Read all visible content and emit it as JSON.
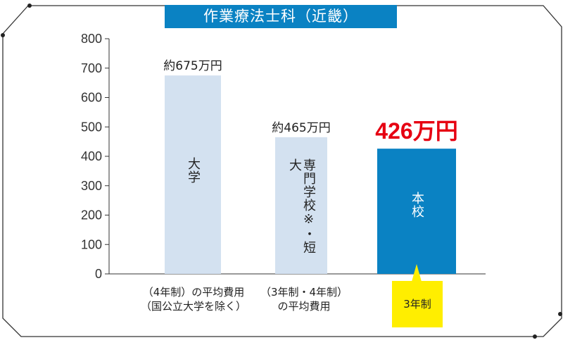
{
  "title": "作業療法士科（近畿）",
  "chart_data": {
    "type": "bar",
    "ylim": [
      0,
      800
    ],
    "yticks": [
      0,
      100,
      200,
      300,
      400,
      500,
      600,
      700,
      800
    ],
    "categories": [
      {
        "inner": [
          "大",
          "学"
        ],
        "labels": [
          "（4年制）の平均費用",
          "（国公立大学を除く）"
        ]
      },
      {
        "inner": [
          "専門学校※・",
          "短大"
        ],
        "labels": [
          "（3年制・4年制）",
          "の平均費用"
        ]
      },
      {
        "inner": [
          "本",
          "校"
        ],
        "labels": []
      }
    ],
    "values": [
      675,
      465,
      426
    ],
    "value_labels": [
      "約675万円",
      "約465万円",
      "426万円"
    ],
    "colors": [
      "#d3e1f0",
      "#d3e1f0",
      "#0a82c3"
    ],
    "highlight_color": "#e60012",
    "grid": false
  },
  "callout": {
    "label": "3年制",
    "color": "#ffee00"
  }
}
